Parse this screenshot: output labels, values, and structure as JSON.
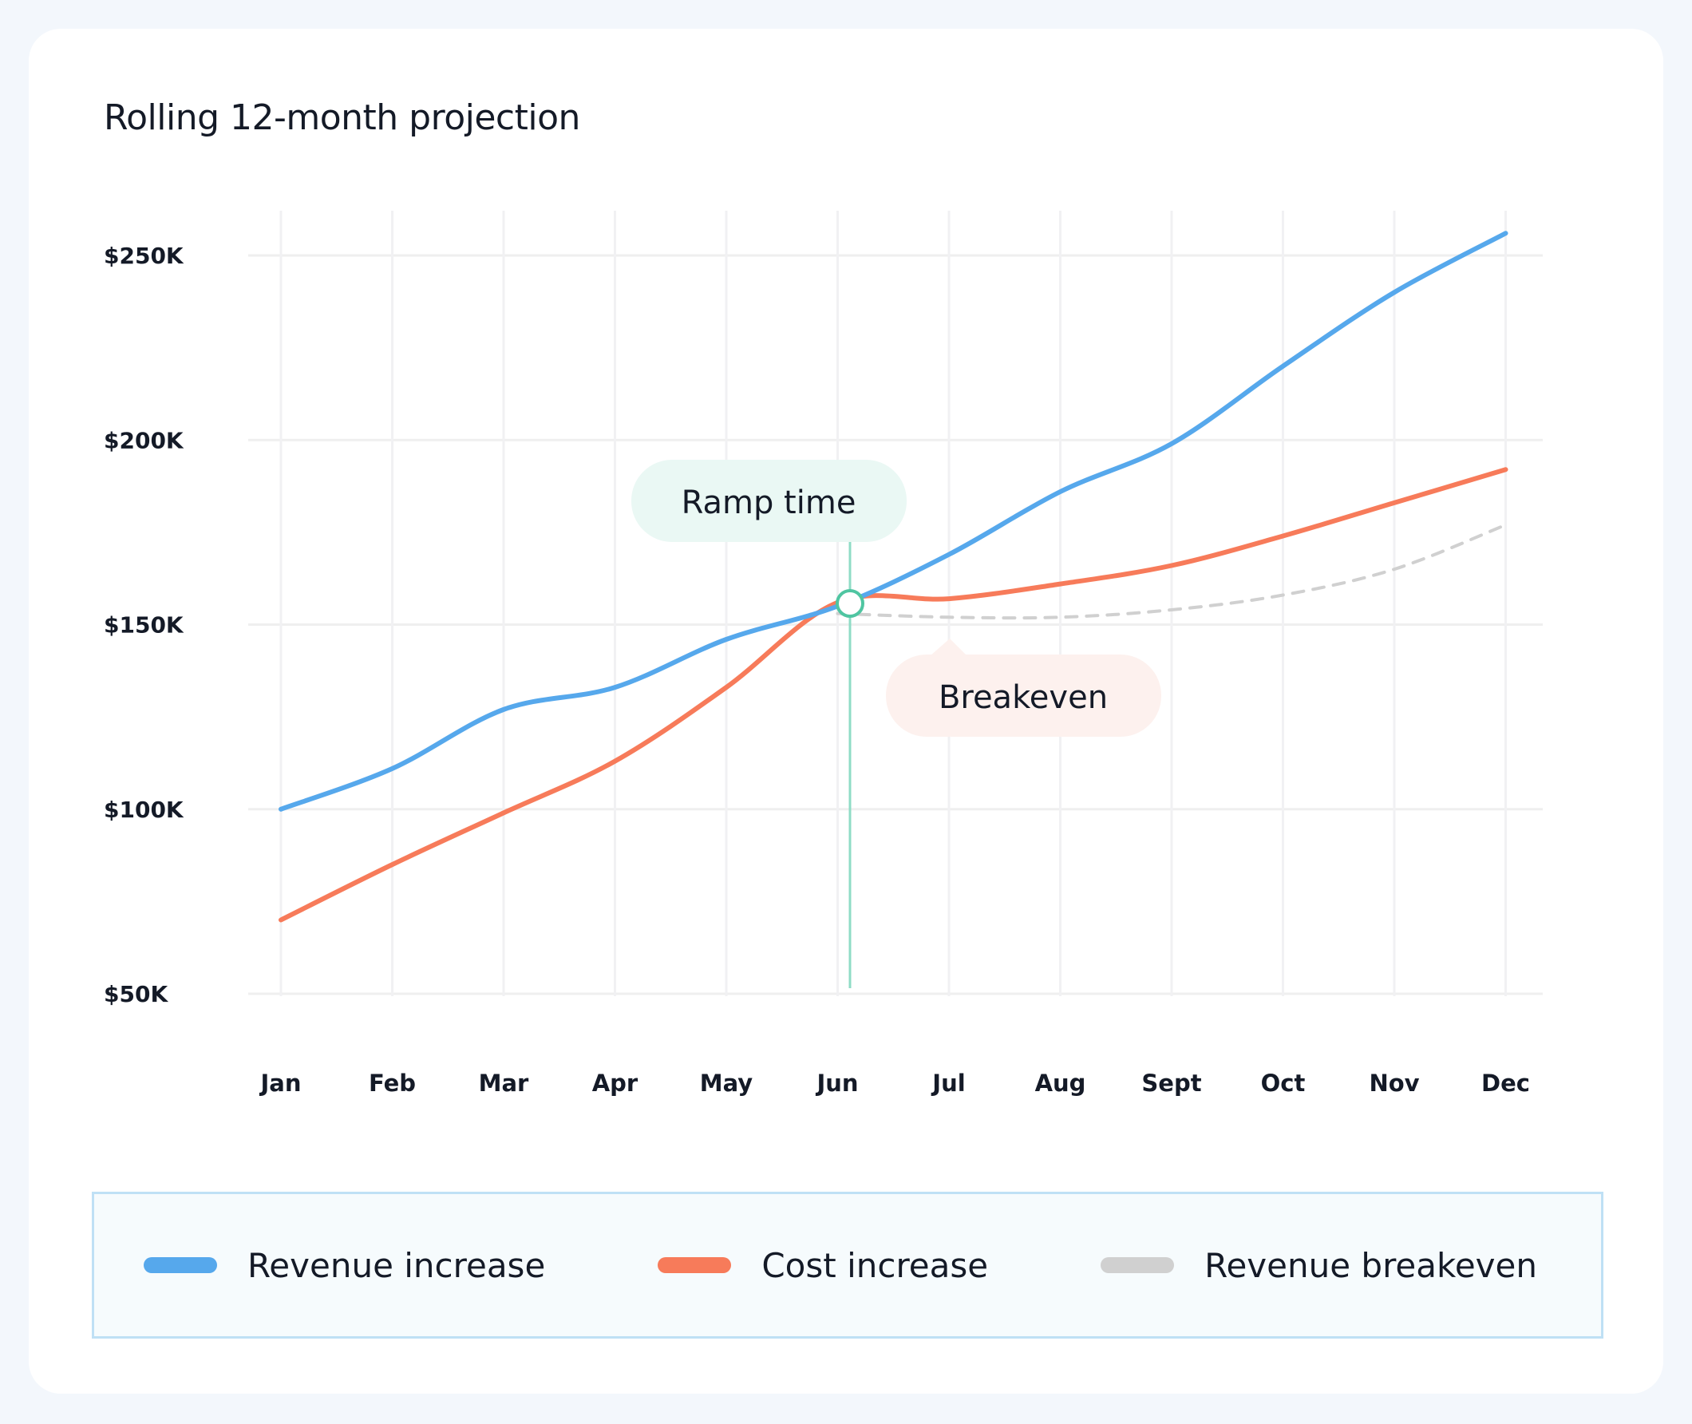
{
  "chart_data": {
    "type": "line",
    "title": "Rolling 12-month projection",
    "categories": [
      "Jan",
      "Feb",
      "Mar",
      "Apr",
      "May",
      "Jun",
      "Jul",
      "Aug",
      "Sept",
      "Oct",
      "Nov",
      "Dec"
    ],
    "y_ticks": [
      "$50K",
      "$100K",
      "$150K",
      "$200K",
      "$250K"
    ],
    "y_tick_values": [
      50,
      100,
      150,
      200,
      250
    ],
    "ylim": [
      50,
      250
    ],
    "y_unit": "thousands USD",
    "grid": true,
    "legend_position": "bottom",
    "series": [
      {
        "name": "Revenue increase",
        "color": "#56a8ec",
        "style": "solid",
        "values": [
          100,
          111,
          127,
          133,
          146,
          155,
          169,
          186,
          199,
          220,
          240,
          256
        ]
      },
      {
        "name": "Cost increase",
        "color": "#f77b5a",
        "style": "solid",
        "values": [
          70,
          85,
          99,
          113,
          133,
          156,
          157,
          161,
          166,
          174,
          183,
          192
        ]
      },
      {
        "name": "Revenue breakeven",
        "color": "#d0d0d0",
        "style": "dashed",
        "start_index": 5,
        "values": [
          null,
          null,
          null,
          null,
          null,
          153,
          152,
          152,
          154,
          158,
          165,
          177
        ]
      }
    ],
    "annotations": [
      {
        "label": "Ramp time",
        "at": "Jun",
        "value": 155,
        "color": "#4fc5a1",
        "bg": "#eaf8f4"
      },
      {
        "label": "Breakeven",
        "at": "Jul",
        "value": 152,
        "bg": "#fdf1ee"
      }
    ]
  }
}
